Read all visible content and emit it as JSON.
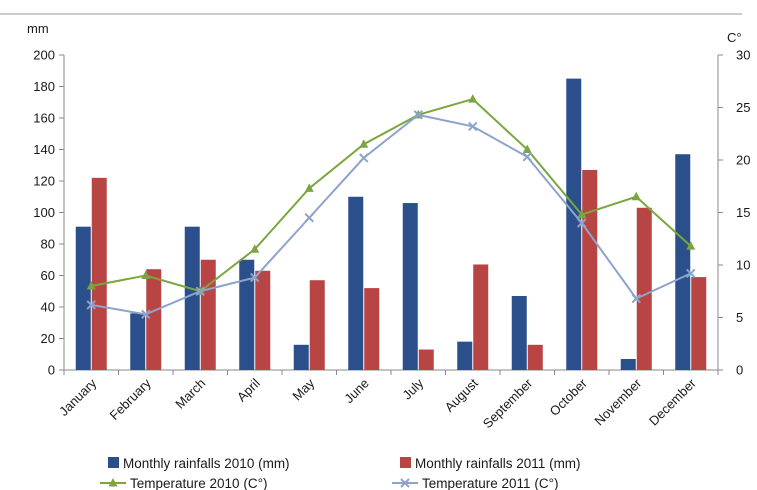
{
  "chart_data": {
    "type": "bar",
    "categories": [
      "January",
      "February",
      "March",
      "April",
      "May",
      "June",
      "July",
      "August",
      "September",
      "October",
      "November",
      "December"
    ],
    "left_axis": {
      "unit": "mm",
      "min": 0,
      "max": 200,
      "step": 20,
      "ticks": [
        "0",
        "20",
        "40",
        "60",
        "80",
        "100",
        "120",
        "140",
        "160",
        "180",
        "200"
      ]
    },
    "right_axis": {
      "unit": "C°",
      "min": 0,
      "max": 30,
      "step": 5,
      "ticks": [
        "0",
        "5",
        "10",
        "15",
        "20",
        "25",
        "30"
      ]
    },
    "grid": false,
    "legend_position": "bottom",
    "series": [
      {
        "name": "Monthly rainfalls 2010 (mm)",
        "kind": "bar",
        "axis": "left",
        "color": "#2b4f8a",
        "values": [
          91,
          36,
          91,
          70,
          16,
          110,
          106,
          18,
          47,
          185,
          7,
          137
        ]
      },
      {
        "name": "Monthly rainfalls 2011 (mm)",
        "kind": "bar",
        "axis": "left",
        "color": "#b84444",
        "values": [
          122,
          64,
          70,
          63,
          57,
          52,
          13,
          67,
          16,
          127,
          103,
          59
        ]
      },
      {
        "name": "Temperature 2010 (C°)",
        "kind": "line",
        "axis": "right",
        "color": "#7ba63f",
        "marker": "triangle",
        "values": [
          8,
          9,
          7.5,
          11.5,
          17.3,
          21.5,
          24.3,
          25.8,
          21,
          14.8,
          16.5,
          11.8
        ]
      },
      {
        "name": "Temperature 2011 (C°)",
        "kind": "line",
        "axis": "right",
        "color": "#8ea3cc",
        "marker": "x",
        "values": [
          6.2,
          5.3,
          7.5,
          8.8,
          14.5,
          20.2,
          24.3,
          23.2,
          20.3,
          14,
          6.8,
          9.2
        ]
      }
    ]
  }
}
